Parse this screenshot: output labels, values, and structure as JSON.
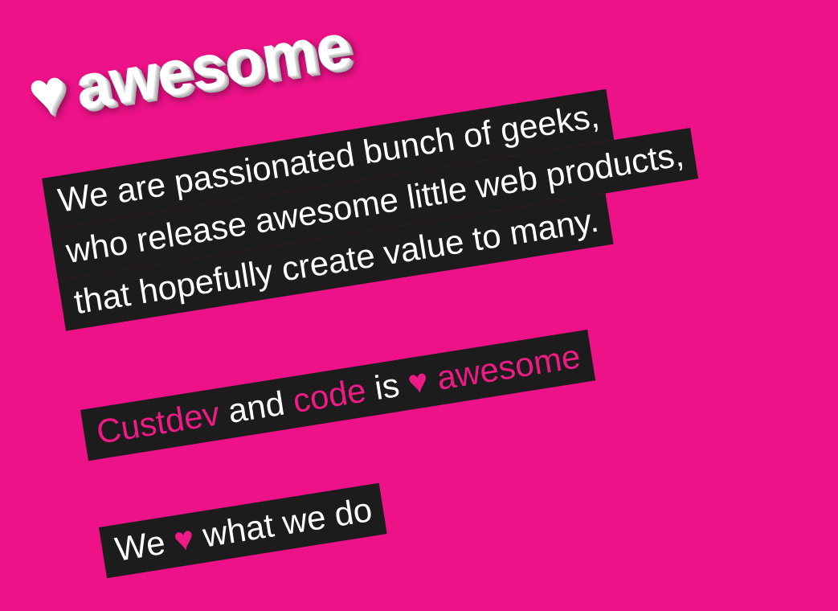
{
  "header": {
    "heart": "♥",
    "title": "awesome"
  },
  "intro": {
    "lines": [
      "We are passionated bunch of geeks,",
      "who release awesome little web products,",
      "that hopefully create value to many."
    ]
  },
  "motto": {
    "word1": "Custdev",
    "word2": "and",
    "word3": "code",
    "word4": "is",
    "heart": "♥",
    "word5": "awesome"
  },
  "tagline": {
    "word1": "We",
    "heart": "♥",
    "word2": "what we do"
  },
  "colors": {
    "background": "#ee1289",
    "box": "#1c1c1c",
    "accent": "#ee1a86",
    "text": "#ffffff"
  }
}
